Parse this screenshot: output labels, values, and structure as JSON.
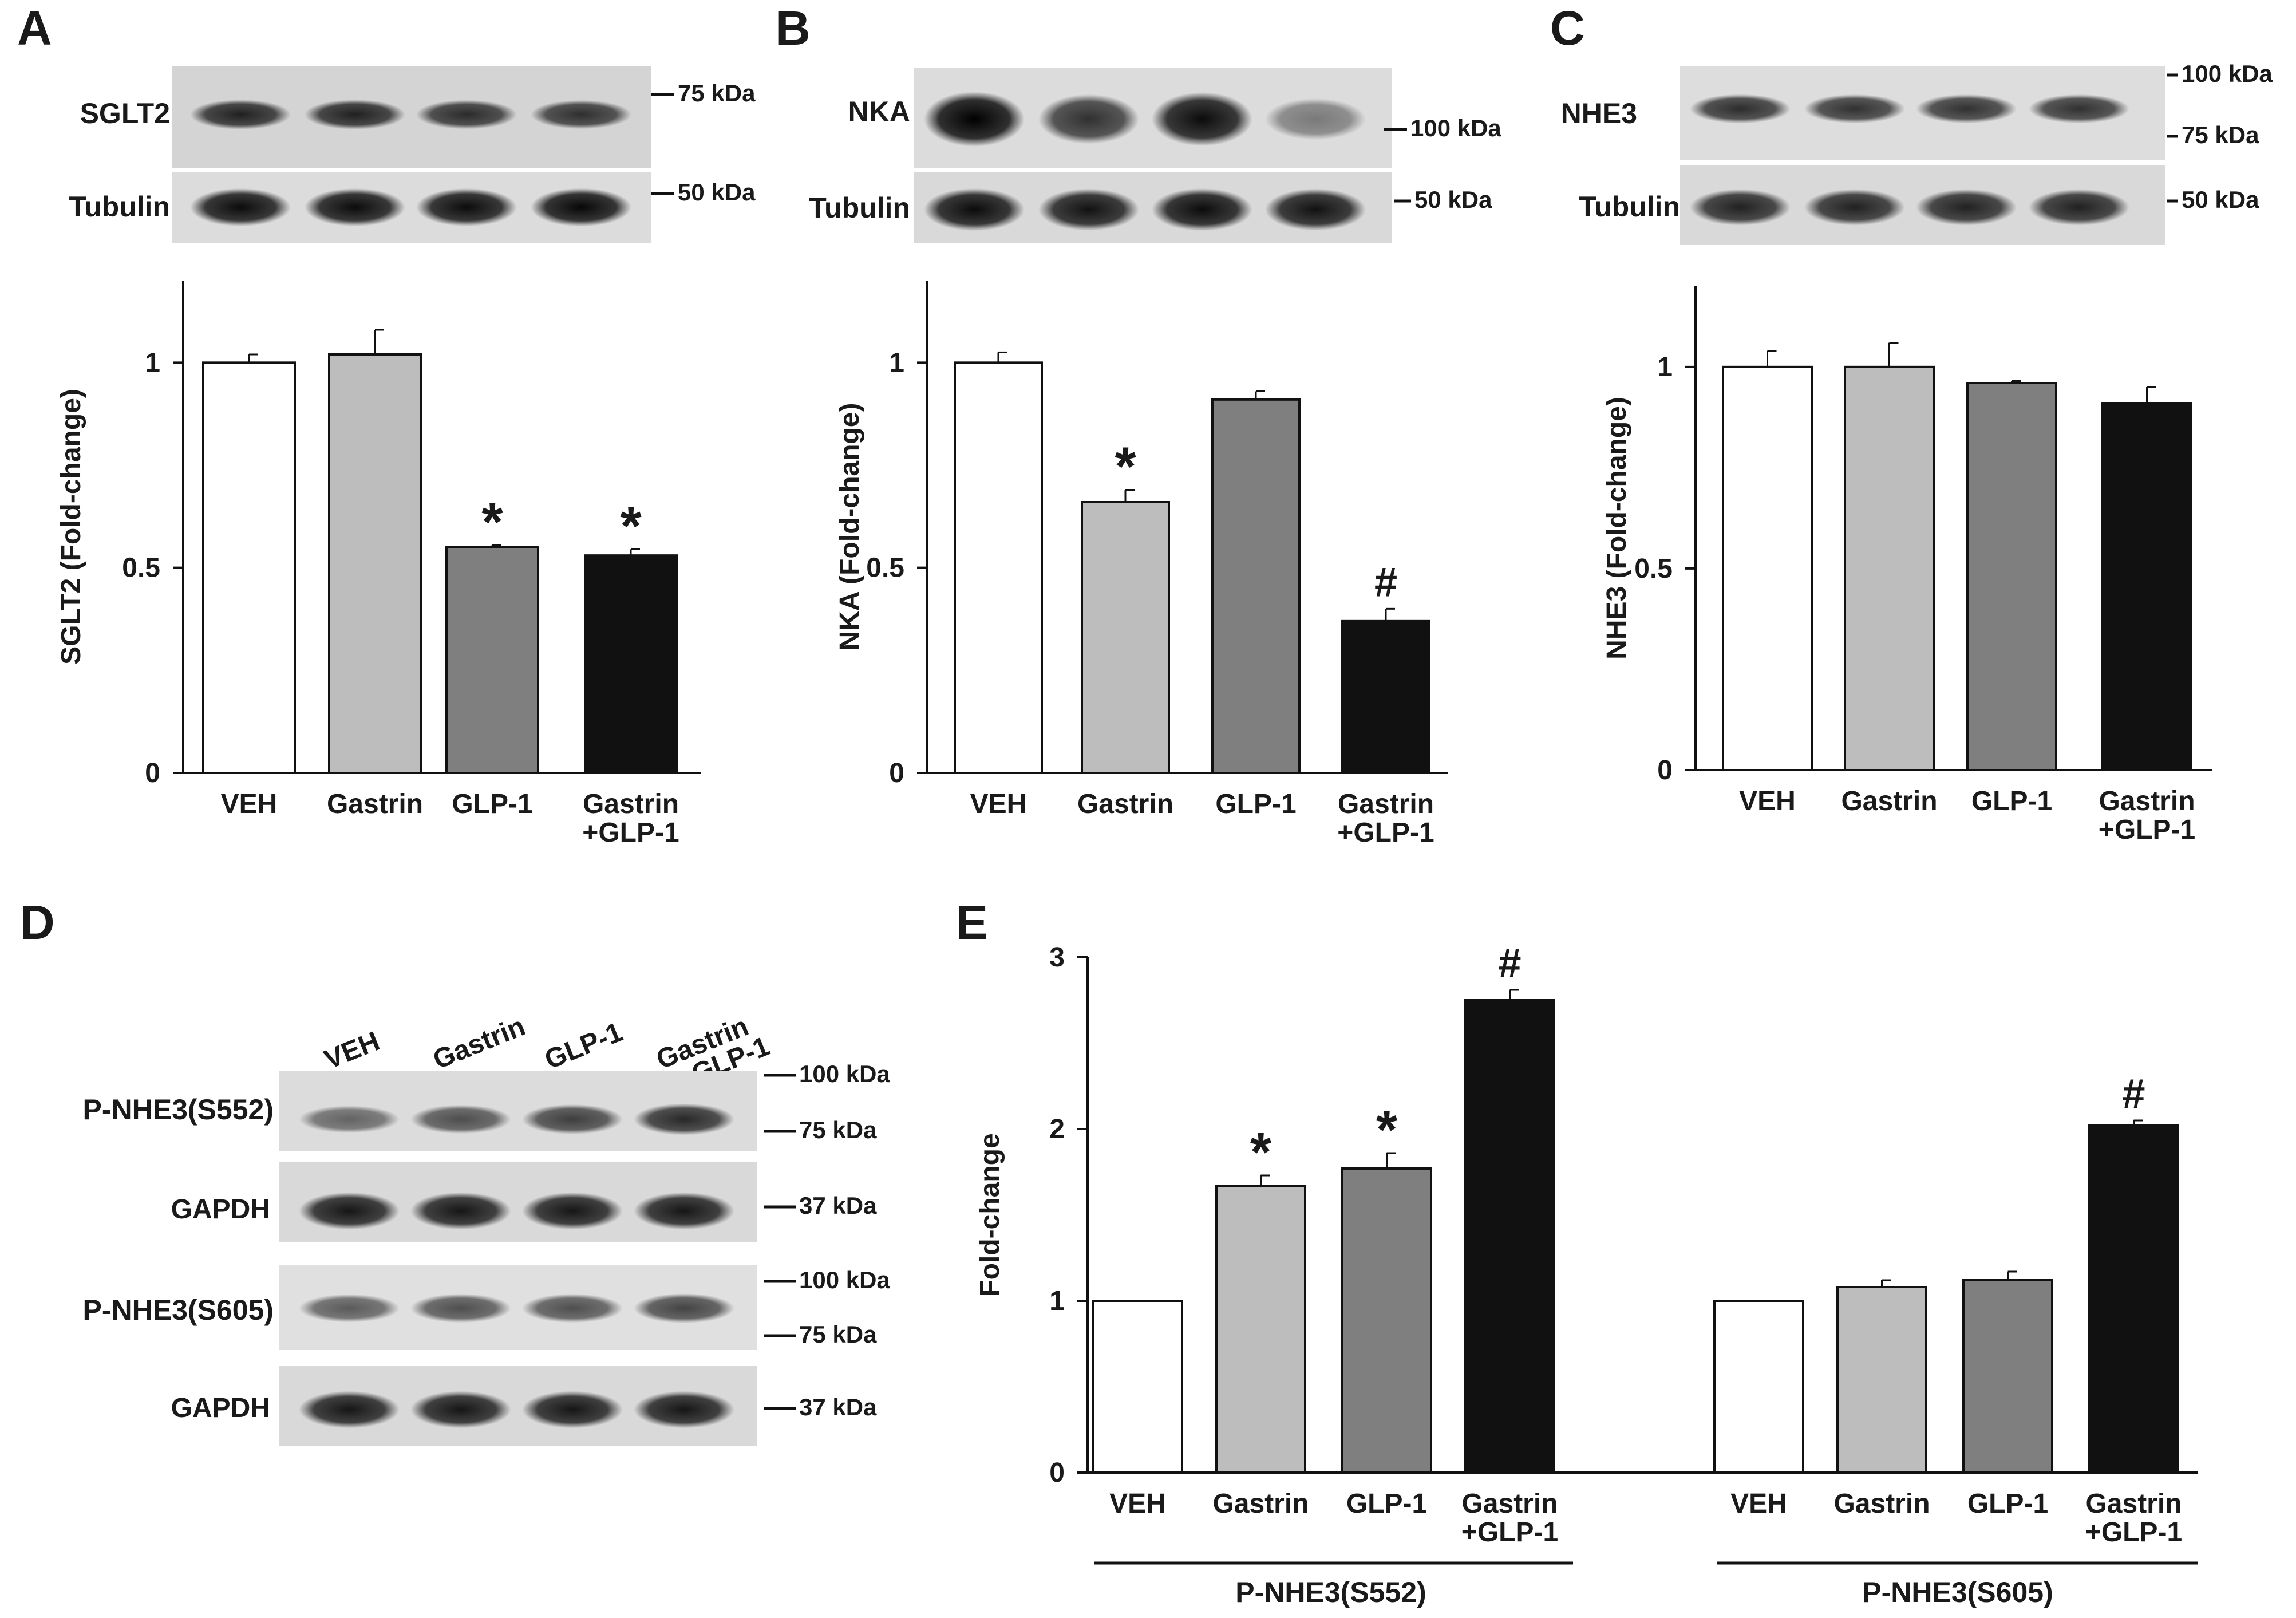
{
  "panels": [
    {
      "letter": "A",
      "blot_rows": [
        {
          "label": "SGLT2",
          "markers": [
            "75 kDa"
          ]
        },
        {
          "label": "Tubulin",
          "markers": [
            "50 kDa"
          ]
        }
      ],
      "band_intensity": [
        [
          0.85,
          0.85,
          0.8,
          0.78
        ],
        [
          0.95,
          0.95,
          0.95,
          0.97
        ]
      ]
    },
    {
      "letter": "B",
      "blot_rows": [
        {
          "label": "NKA",
          "markers": [
            "100 kDa"
          ]
        },
        {
          "label": "Tubulin",
          "markers": [
            "50 kDa"
          ]
        }
      ],
      "band_intensity": [
        [
          1.0,
          0.78,
          0.95,
          0.45
        ],
        [
          0.95,
          0.92,
          0.95,
          0.92
        ]
      ]
    },
    {
      "letter": "C",
      "blot_rows": [
        {
          "label": "NHE3",
          "markers": [
            "100 kDa",
            "75 kDa"
          ]
        },
        {
          "label": "Tubulin",
          "markers": [
            "50 kDa"
          ]
        }
      ],
      "band_intensity": [
        [
          0.8,
          0.78,
          0.78,
          0.78
        ],
        [
          0.85,
          0.85,
          0.85,
          0.85
        ]
      ]
    },
    {
      "letter": "D",
      "lanes": [
        "VEH",
        "Gastrin",
        "GLP-1",
        "Gastrin\n+GLP-1"
      ],
      "blot_rows": [
        {
          "label": "P-NHE3(S552)",
          "markers": [
            "100 kDa",
            "75 kDa"
          ]
        },
        {
          "label": "GAPDH",
          "markers": [
            "37 kDa"
          ]
        },
        {
          "label": "P-NHE3(S605)",
          "markers": [
            "100 kDa",
            "75 kDa"
          ]
        },
        {
          "label": "GAPDH",
          "markers": [
            "37 kDa"
          ]
        }
      ],
      "band_intensity": [
        [
          0.55,
          0.65,
          0.72,
          0.82
        ],
        [
          0.9,
          0.9,
          0.9,
          0.9
        ],
        [
          0.6,
          0.65,
          0.65,
          0.7
        ],
        [
          0.9,
          0.9,
          0.9,
          0.9
        ]
      ]
    },
    {
      "letter": "E"
    }
  ],
  "colors": {
    "VEH": "#ffffff",
    "Gastrin": "#bdbdbd",
    "GLP-1": "#7f7f7f",
    "Gastrin+GLP-1": "#111111"
  },
  "chart_data": [
    {
      "panel": "A",
      "type": "bar",
      "categories": [
        "VEH",
        "Gastrin",
        "GLP-1",
        "Gastrin\n+GLP-1"
      ],
      "values": [
        1.0,
        1.02,
        0.55,
        0.53
      ],
      "errors": [
        0.02,
        0.06,
        0.005,
        0.015
      ],
      "annotations": [
        "",
        "",
        "*",
        "*"
      ],
      "ylabel": "SGLT2 (Fold-change)",
      "yticks": [
        0,
        0.5,
        1
      ],
      "ytick_labels": [
        "0",
        "0.5",
        "1"
      ],
      "ylim": [
        0,
        1.2
      ]
    },
    {
      "panel": "B",
      "type": "bar",
      "categories": [
        "VEH",
        "Gastrin",
        "GLP-1",
        "Gastrin\n+GLP-1"
      ],
      "values": [
        1.0,
        0.66,
        0.91,
        0.37
      ],
      "errors": [
        0.025,
        0.03,
        0.02,
        0.03
      ],
      "annotations": [
        "",
        "*",
        "",
        "#"
      ],
      "ylabel": "NKA (Fold-change)",
      "yticks": [
        0,
        0.5,
        1
      ],
      "ytick_labels": [
        "0",
        "0.5",
        "1"
      ],
      "ylim": [
        0,
        1.2
      ]
    },
    {
      "panel": "C",
      "type": "bar",
      "categories": [
        "VEH",
        "Gastrin",
        "GLP-1",
        "Gastrin\n+GLP-1"
      ],
      "values": [
        1.0,
        1.0,
        0.96,
        0.91
      ],
      "errors": [
        0.04,
        0.06,
        0.005,
        0.04
      ],
      "annotations": [
        "",
        "",
        "",
        ""
      ],
      "ylabel": "NHE3 (Fold-change)",
      "yticks": [
        0,
        0.5,
        1
      ],
      "ytick_labels": [
        "0",
        "0.5",
        "1"
      ],
      "ylim": [
        0,
        1.2
      ]
    },
    {
      "panel": "E",
      "type": "bar",
      "categories": [
        "VEH",
        "Gastrin",
        "GLP-1",
        "Gastrin\n+GLP-1"
      ],
      "series": [
        {
          "group": "P-NHE3(S552)",
          "values": [
            1.0,
            1.67,
            1.77,
            2.75
          ],
          "errors": [
            0,
            0.06,
            0.09,
            0.06
          ],
          "annotations": [
            "",
            "*",
            "*",
            "#"
          ]
        },
        {
          "group": "P-NHE3(S605)",
          "values": [
            1.0,
            1.08,
            1.12,
            2.02
          ],
          "errors": [
            0,
            0.04,
            0.05,
            0.03
          ],
          "annotations": [
            "",
            "",
            "",
            "#"
          ]
        }
      ],
      "ylabel": "Fold-change",
      "yticks": [
        0,
        1,
        2,
        3
      ],
      "ytick_labels": [
        "0",
        "1",
        "2",
        "3"
      ],
      "ylim": [
        0,
        3
      ]
    }
  ]
}
